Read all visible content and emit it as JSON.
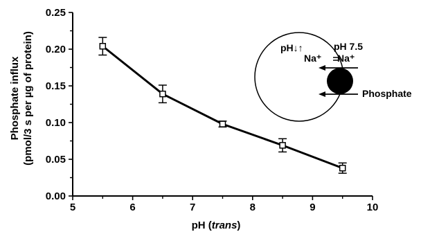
{
  "chart_data": {
    "type": "line",
    "xlabel": "pH",
    "xlabel_italic": "trans",
    "ylabel_line1": "Phosphate influx",
    "ylabel_line2": "(pmol/3 s per µg of protein)",
    "xlim": [
      5,
      10
    ],
    "ylim": [
      0,
      0.25
    ],
    "x_ticks": [
      "5",
      "6",
      "7",
      "8",
      "9",
      "10"
    ],
    "y_ticks": [
      "0.00",
      "0.05",
      "0.10",
      "0.15",
      "0.20",
      "0.25"
    ],
    "grid": false,
    "series": [
      {
        "x": [
          5.5,
          6.5,
          7.5,
          8.5,
          9.5
        ],
        "values": [
          0.204,
          0.139,
          0.098,
          0.069,
          0.038
        ],
        "error": [
          0.012,
          0.012,
          0.004,
          0.009,
          0.007
        ],
        "marker": "open-square"
      }
    ],
    "inset": {
      "inside_label": "pH↓↑",
      "outside_label": "pH 7.5",
      "na_left": "Na⁺",
      "na_right": "Na⁺",
      "transporter_label": "Phosphate"
    }
  }
}
